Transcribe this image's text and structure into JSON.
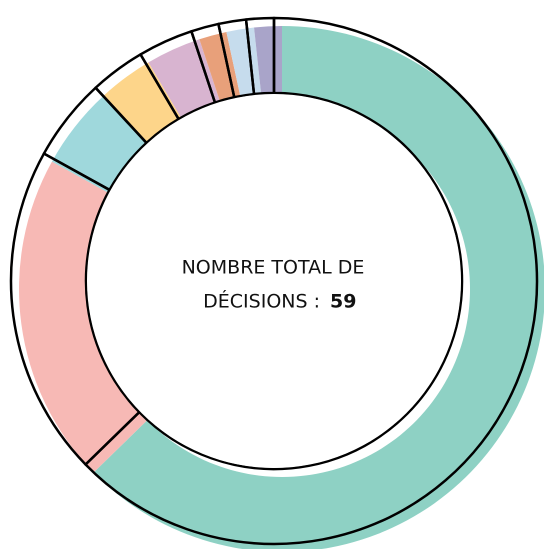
{
  "chart_data": {
    "type": "donut",
    "center_label": [
      "NOMBRE TOTAL DE",
      "DÉCISIONS :"
    ],
    "total": 59,
    "categories": [
      null,
      null,
      null,
      null,
      null,
      null,
      null,
      null
    ],
    "values": [
      37,
      12,
      3,
      2,
      2,
      1,
      1,
      1
    ],
    "colors": [
      "#8ed1c4",
      "#f7b9b5",
      "#9fd8dc",
      "#fdd58a",
      "#d8b4d0",
      "#e8a07a",
      "#c6dced",
      "#a9a4c9"
    ]
  }
}
